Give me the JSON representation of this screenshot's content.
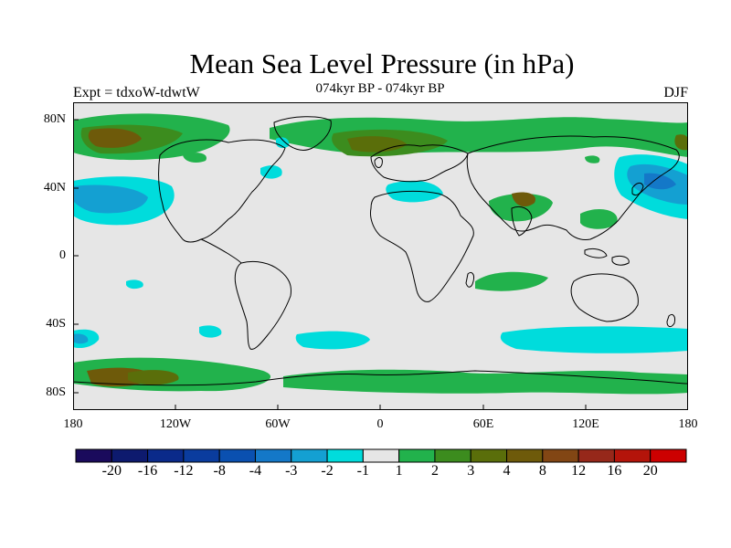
{
  "title": "Mean Sea Level Pressure (in hPa)",
  "subtitle": "074kyr BP - 074kyr BP",
  "experiment": "Expt = tdxoW-tdwtW",
  "season": "DJF",
  "lat_ticks": [
    "80N",
    "40N",
    "0",
    "40S",
    "80S"
  ],
  "lon_ticks": [
    "180",
    "120W",
    "60W",
    "0",
    "60E",
    "120E",
    "180"
  ],
  "colorbar": {
    "colors": [
      "#1a0a5c",
      "#0d1a6e",
      "#0a2a8a",
      "#0a3c9e",
      "#0a50b0",
      "#1478c8",
      "#14a0d2",
      "#00dcdc",
      "#e6e6e6",
      "#22b24c",
      "#3c8c1e",
      "#5a6e0a",
      "#6e5a0a",
      "#824614",
      "#96281a",
      "#b4140a",
      "#cc0000"
    ],
    "labels": [
      "-20",
      "-16",
      "-12",
      "-8",
      "-4",
      "-3",
      "-2",
      "-1",
      "1",
      "2",
      "3",
      "4",
      "8",
      "12",
      "16",
      "20"
    ]
  },
  "map": {
    "land_background": "#e6e6e6",
    "coast_color": "#000000"
  }
}
